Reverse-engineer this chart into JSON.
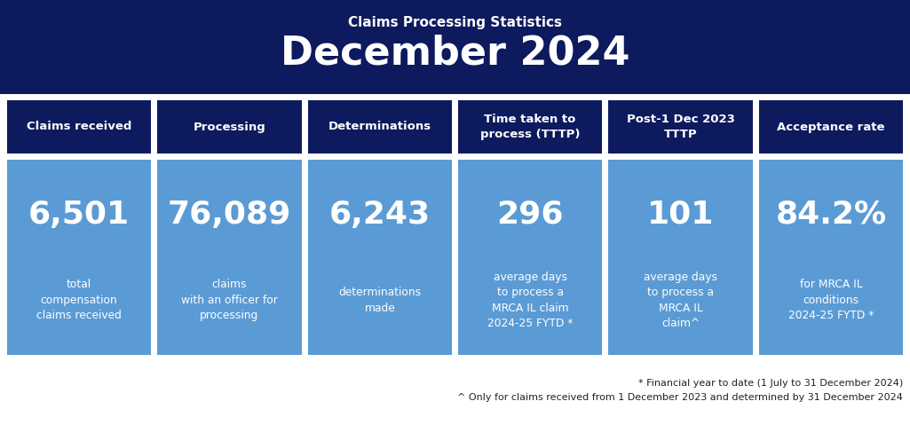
{
  "title_sub": "Claims Processing Statistics",
  "title_main": "December 2024",
  "header_bg": "#0d1a5e",
  "header_text_color": "#ffffff",
  "card_header_bg": "#0d1a5e",
  "card_body_bg": "#5b9bd5",
  "card_text_color": "#ffffff",
  "footer_text_color": "#222222",
  "bg_color": "#ffffff",
  "fig_width": 10.25,
  "fig_height": 4.79,
  "dpi": 100,
  "columns": [
    {
      "header": "Claims received",
      "value": "6,501",
      "description": "total\ncompensation\nclaims received"
    },
    {
      "header": "Processing",
      "value": "76,089",
      "description": "claims\nwith an officer for\nprocessing"
    },
    {
      "header": "Determinations",
      "value": "6,243",
      "description": "determinations\nmade"
    },
    {
      "header": "Time taken to\nprocess (TTTP)",
      "value": "296",
      "description": "average days\nto process a\nMRCA IL claim\n2024-25 FYTD *"
    },
    {
      "header": "Post-1 Dec 2023\nTTTP",
      "value": "101",
      "description": "average days\nto process a\nMRCA IL\nclaim^"
    },
    {
      "header": "Acceptance rate",
      "value": "84.2%",
      "description": "for MRCA IL\nconditions\n2024-25 FYTD *"
    }
  ],
  "footnote1": "* Financial year to date (1 July to 31 December 2024)",
  "footnote2": "^ Only for claims received from 1 December 2023 and determined by 31 December 2024"
}
